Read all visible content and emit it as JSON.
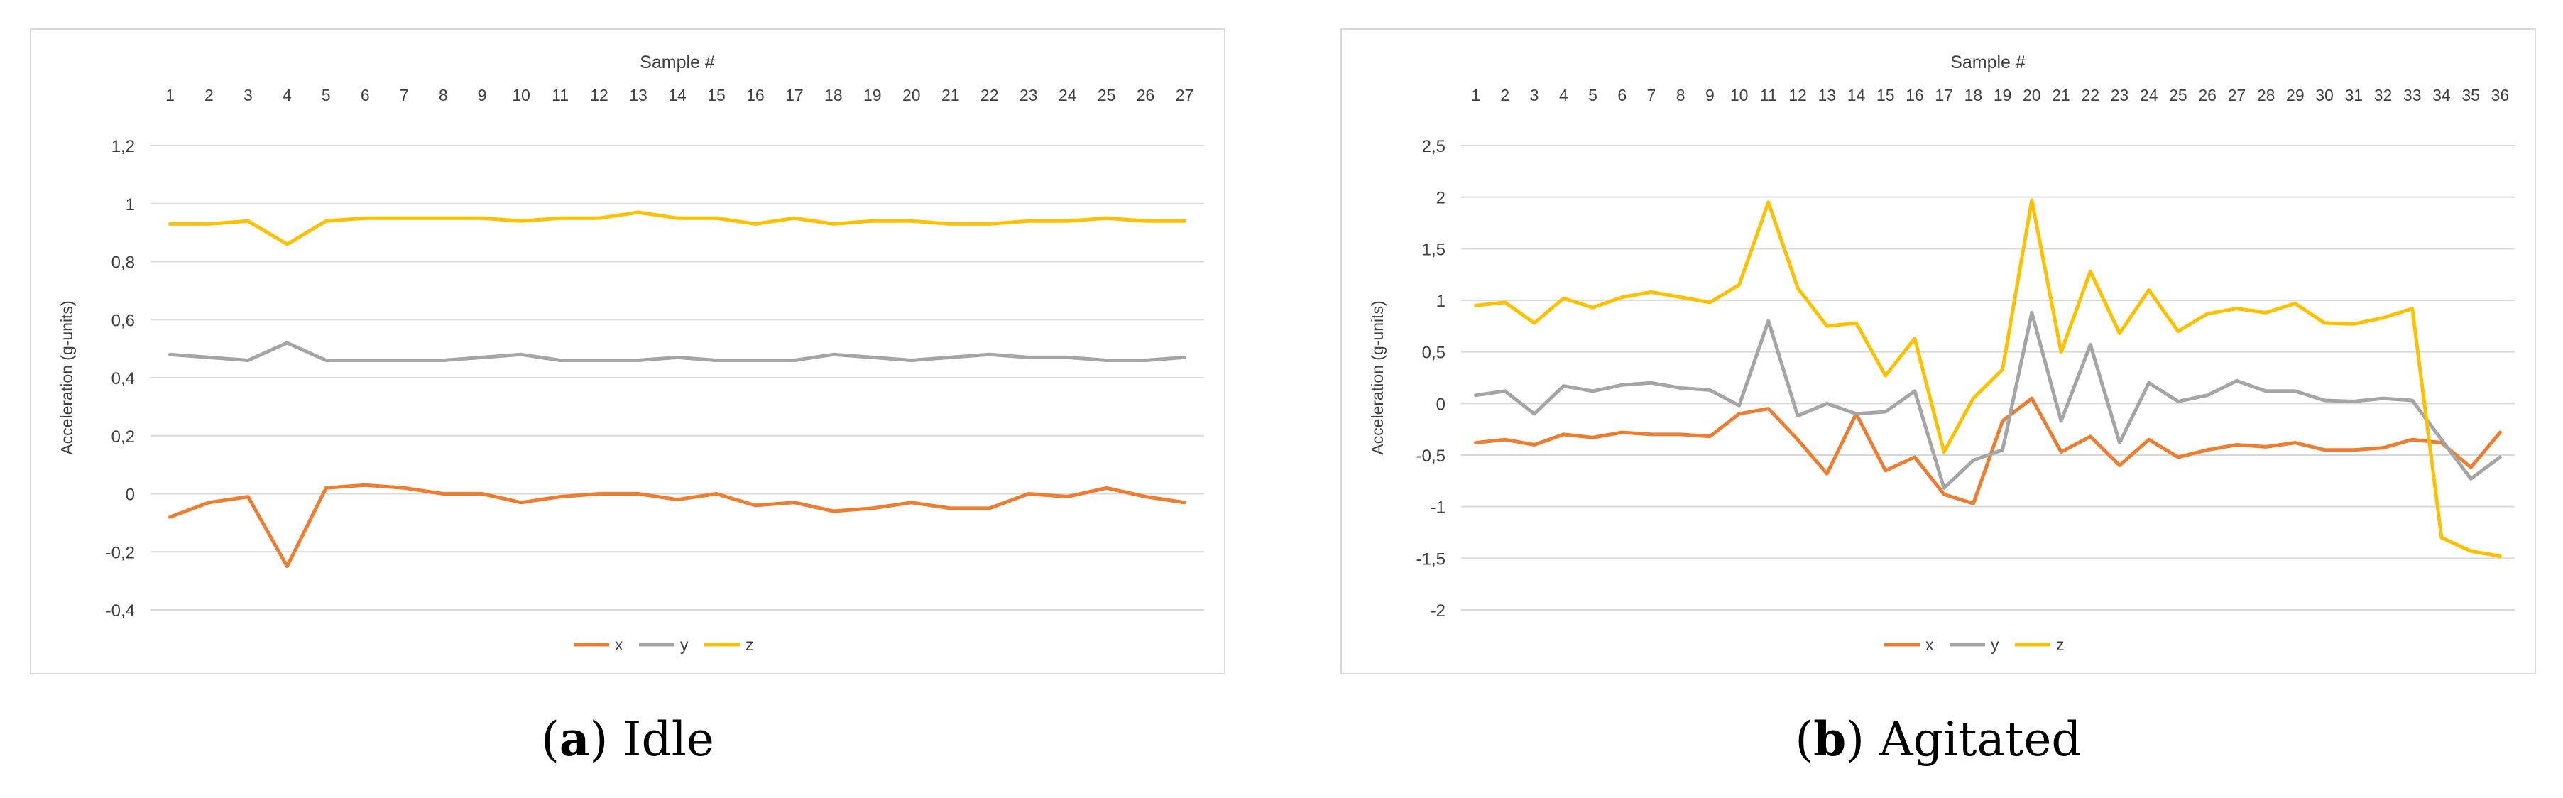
{
  "charts": [
    {
      "id": "a",
      "caption_letter": "a",
      "caption_text": "Idle",
      "chart_data": {
        "type": "line",
        "title": "",
        "x_axis_title": "Sample #",
        "ylabel": "Acceleration (g-units)",
        "categories": [
          "1",
          "2",
          "3",
          "4",
          "5",
          "6",
          "7",
          "8",
          "9",
          "10",
          "11",
          "12",
          "13",
          "14",
          "15",
          "16",
          "17",
          "18",
          "19",
          "20",
          "21",
          "22",
          "23",
          "24",
          "25",
          "26",
          "27"
        ],
        "ylim": [
          -0.4,
          1.2
        ],
        "yticks": [
          -0.4,
          -0.2,
          0,
          0.2,
          0.4,
          0.6,
          0.8,
          1,
          1.2
        ],
        "ytick_labels": [
          "-0,4",
          "-0,2",
          "0",
          "0,2",
          "0,4",
          "0,6",
          "0,8",
          "1",
          "1,2"
        ],
        "grid": true,
        "legend_position": "bottom",
        "series": [
          {
            "name": "x",
            "color": "#ED7D31",
            "values": [
              -0.08,
              -0.03,
              -0.01,
              -0.25,
              0.02,
              0.03,
              0.02,
              0.0,
              0.0,
              -0.03,
              -0.01,
              0.0,
              0.0,
              -0.02,
              0.0,
              -0.04,
              -0.03,
              -0.06,
              -0.05,
              -0.03,
              -0.05,
              -0.05,
              0.0,
              -0.01,
              0.02,
              -0.01,
              -0.03
            ]
          },
          {
            "name": "y",
            "color": "#A5A5A5",
            "values": [
              0.48,
              0.47,
              0.46,
              0.52,
              0.46,
              0.46,
              0.46,
              0.46,
              0.47,
              0.48,
              0.46,
              0.46,
              0.46,
              0.47,
              0.46,
              0.46,
              0.46,
              0.48,
              0.47,
              0.46,
              0.47,
              0.48,
              0.47,
              0.47,
              0.46,
              0.46,
              0.47
            ]
          },
          {
            "name": "z",
            "color": "#FFC000",
            "values": [
              0.93,
              0.93,
              0.94,
              0.86,
              0.94,
              0.95,
              0.95,
              0.95,
              0.95,
              0.94,
              0.95,
              0.95,
              0.97,
              0.95,
              0.95,
              0.93,
              0.95,
              0.93,
              0.94,
              0.94,
              0.93,
              0.93,
              0.94,
              0.94,
              0.95,
              0.94,
              0.94
            ]
          }
        ]
      }
    },
    {
      "id": "b",
      "caption_letter": "b",
      "caption_text": "Agitated",
      "chart_data": {
        "type": "line",
        "title": "",
        "x_axis_title": "Sample #",
        "ylabel": "Acceleration (g-units)",
        "categories": [
          "1",
          "2",
          "3",
          "4",
          "5",
          "6",
          "7",
          "8",
          "9",
          "10",
          "11",
          "12",
          "13",
          "14",
          "15",
          "16",
          "17",
          "18",
          "19",
          "20",
          "21",
          "22",
          "23",
          "24",
          "25",
          "26",
          "27",
          "28",
          "29",
          "30",
          "31",
          "32",
          "33",
          "34",
          "35",
          "36"
        ],
        "ylim": [
          -2,
          2.5
        ],
        "yticks": [
          -2,
          -1.5,
          -1,
          -0.5,
          0,
          0.5,
          1,
          1.5,
          2,
          2.5
        ],
        "ytick_labels": [
          "-2",
          "-1,5",
          "-1",
          "-0,5",
          "0",
          "0,5",
          "1",
          "1,5",
          "2",
          "2,5"
        ],
        "grid": true,
        "legend_position": "bottom",
        "series": [
          {
            "name": "x",
            "color": "#ED7D31",
            "values": [
              -0.38,
              -0.35,
              -0.4,
              -0.3,
              -0.33,
              -0.28,
              -0.3,
              -0.3,
              -0.32,
              -0.1,
              -0.05,
              -0.35,
              -0.68,
              -0.1,
              -0.65,
              -0.52,
              -0.88,
              -0.97,
              -0.17,
              0.05,
              -0.47,
              -0.32,
              -0.6,
              -0.35,
              -0.52,
              -0.45,
              -0.4,
              -0.42,
              -0.38,
              -0.45,
              -0.45,
              -0.43,
              -0.35,
              -0.38,
              -0.62,
              -0.28
            ]
          },
          {
            "name": "y",
            "color": "#A5A5A5",
            "values": [
              0.08,
              0.12,
              -0.1,
              0.17,
              0.12,
              0.18,
              0.2,
              0.15,
              0.13,
              -0.02,
              0.8,
              -0.12,
              0.0,
              -0.1,
              -0.08,
              0.12,
              -0.82,
              -0.55,
              -0.45,
              0.88,
              -0.17,
              0.57,
              -0.38,
              0.2,
              0.02,
              0.08,
              0.22,
              0.12,
              0.12,
              0.03,
              0.02,
              0.05,
              0.03,
              -0.35,
              -0.73,
              -0.52
            ]
          },
          {
            "name": "z",
            "color": "#FFC000",
            "values": [
              0.95,
              0.98,
              0.78,
              1.02,
              0.93,
              1.03,
              1.08,
              1.03,
              0.98,
              1.15,
              1.95,
              1.12,
              0.75,
              0.78,
              0.27,
              0.63,
              -0.47,
              0.05,
              0.33,
              1.97,
              0.5,
              1.28,
              0.68,
              1.1,
              0.7,
              0.87,
              0.92,
              0.88,
              0.97,
              0.78,
              0.77,
              0.83,
              0.92,
              -1.3,
              -1.43,
              -1.48
            ]
          }
        ]
      }
    }
  ]
}
